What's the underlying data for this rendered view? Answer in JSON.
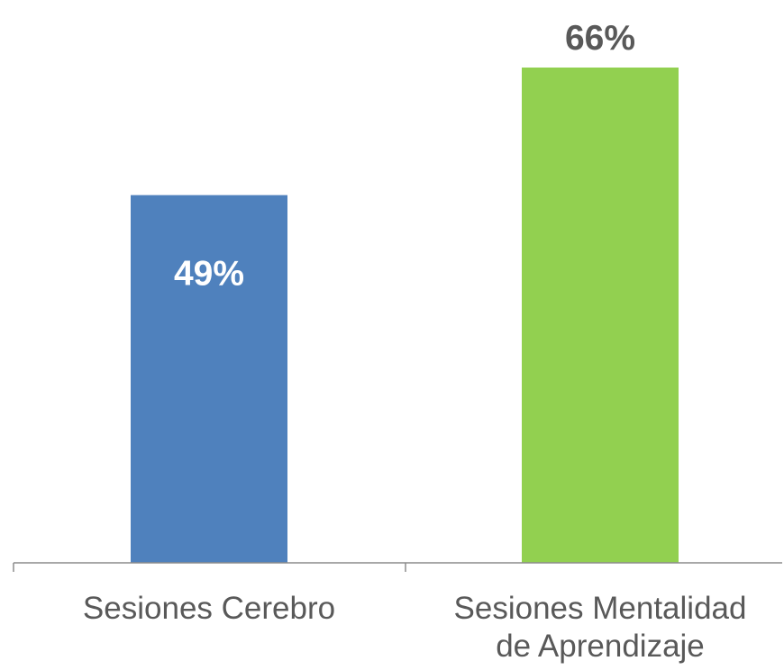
{
  "chart_data": {
    "type": "bar",
    "categories": [
      "Sesiones Cerebro",
      "Sesiones Mentalidad de Aprendizaje"
    ],
    "category_lines": [
      [
        "Sesiones Cerebro"
      ],
      [
        "Sesiones Mentalidad",
        "de Aprendizaje"
      ]
    ],
    "values": [
      49,
      66
    ],
    "data_labels": [
      "49%",
      "66%"
    ],
    "colors": [
      "#4F81BD",
      "#92D050"
    ],
    "label_colors": [
      "#FFFFFF",
      "#595959"
    ],
    "label_placement": [
      "inside",
      "above"
    ],
    "ylim": [
      0,
      75
    ],
    "grid": false,
    "title": "",
    "xlabel": "",
    "ylabel": ""
  }
}
